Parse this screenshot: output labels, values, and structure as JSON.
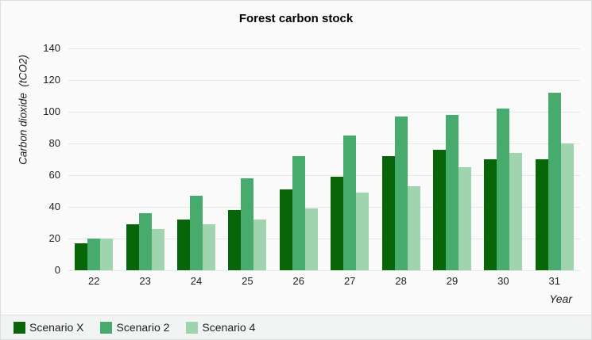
{
  "chart": {
    "title": "Forest carbon stock",
    "ylabel": "Carbon dioxide  (tCO2)",
    "xlabel": "Year"
  },
  "chart_data": {
    "type": "bar",
    "title": "Forest carbon stock",
    "xlabel": "Year",
    "ylabel": "Carbon dioxide  (tCO2)",
    "categories": [
      "22",
      "23",
      "24",
      "25",
      "26",
      "27",
      "28",
      "29",
      "30",
      "31"
    ],
    "series": [
      {
        "name": "Scenario X",
        "color": "#086608",
        "values": [
          17,
          29,
          32,
          38,
          51,
          59,
          72,
          76,
          70,
          70
        ]
      },
      {
        "name": "Scenario 2",
        "color": "#47ab6e",
        "values": [
          20,
          36,
          47,
          58,
          72,
          85,
          97,
          98,
          102,
          112
        ]
      },
      {
        "name": "Scenario 4",
        "color": "#9fd4ae",
        "values": [
          20,
          26,
          29,
          32,
          39,
          49,
          53,
          65,
          74,
          80
        ]
      }
    ],
    "ylim": [
      0,
      140
    ],
    "ytick_step": 20,
    "grid": true,
    "legend_position": "bottom-left"
  },
  "colors": {
    "background": "#fafafa",
    "legend_strip": "#f1f4f2",
    "gridline": "#e3e8e5",
    "border": "#d9e0dd",
    "series_dark": "#086608",
    "series_medium": "#47ab6e",
    "series_light": "#9fd4ae"
  }
}
